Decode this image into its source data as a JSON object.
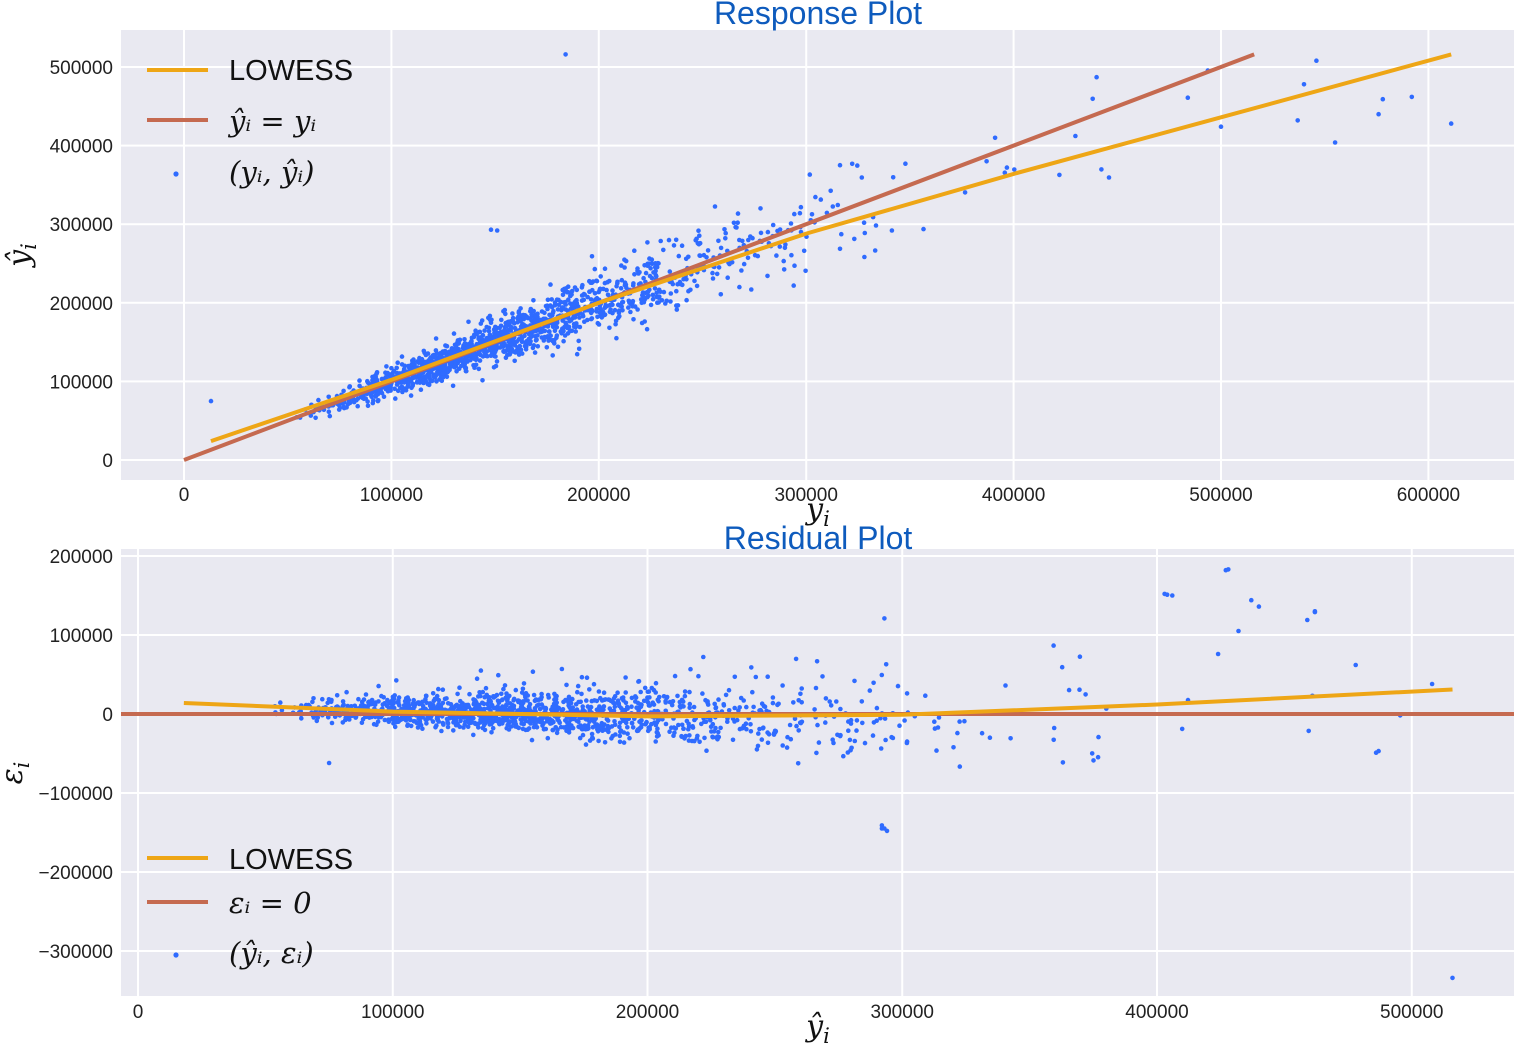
{
  "colors": {
    "points": "#2f6bff",
    "lowess": "#eea616",
    "reference": "#c56a50",
    "title": "#0e5bbd",
    "panel": "#e9e9f1"
  },
  "chart_data": [
    {
      "type": "scatter",
      "title": "Response Plot",
      "xlabel": "y_i",
      "ylabel": "ŷ_i",
      "xlim": [
        -30000,
        640000
      ],
      "ylim": [
        -25000,
        545000
      ],
      "xticks": [
        "0",
        "100000",
        "200000",
        "300000",
        "400000",
        "500000",
        "600000"
      ],
      "yticks": [
        "0",
        "100000",
        "200000",
        "300000",
        "400000",
        "500000"
      ],
      "grid": true,
      "legend_position": "top-left",
      "legend": [
        {
          "kind": "line",
          "label": "LOWESS",
          "color": "#eea616"
        },
        {
          "kind": "line",
          "label": "ŷᵢ = yᵢ",
          "color": "#c56a50"
        },
        {
          "kind": "point",
          "label": "(yᵢ, ŷᵢ)",
          "color": "#2f6bff"
        }
      ],
      "reference_line": {
        "x": [
          0,
          516000
        ],
        "y": [
          0,
          516000
        ]
      },
      "lowess": {
        "x": [
          13000,
          100000,
          200000,
          300000,
          400000,
          500000,
          611000
        ],
        "y": [
          24000,
          102000,
          200000,
          288000,
          364000,
          436000,
          516000
        ]
      },
      "n_points": 1460,
      "point_cloud": {
        "x_range": [
          13000,
          611000
        ],
        "center_x": 150000,
        "spread": 0.12
      }
    },
    {
      "type": "scatter",
      "title": "Residual Plot",
      "xlabel": "ŷ_i",
      "ylabel": "ε_i",
      "xlim": [
        -5000,
        540000
      ],
      "ylim": [
        -345000,
        210000
      ],
      "xticks": [
        "0",
        "100000",
        "200000",
        "300000",
        "400000",
        "500000"
      ],
      "yticks": [
        "200000",
        "100000",
        "0",
        "−100000",
        "−200000",
        "−300000"
      ],
      "grid": true,
      "legend_position": "bottom-left",
      "legend": [
        {
          "kind": "line",
          "label": "LOWESS",
          "color": "#eea616"
        },
        {
          "kind": "line",
          "label": "εᵢ = 0",
          "color": "#c56a50"
        },
        {
          "kind": "point",
          "label": "(ŷᵢ, εᵢ)",
          "color": "#2f6bff"
        }
      ],
      "reference_line": {
        "y": 0
      },
      "lowess": {
        "x": [
          18000,
          100000,
          200000,
          300000,
          400000,
          516000
        ],
        "y": [
          14000,
          3000,
          -3000,
          -1000,
          12000,
          31000
        ]
      },
      "n_points": 1460,
      "outliers": [
        {
          "x": 516000,
          "y": -334000
        },
        {
          "x": 292000,
          "y": -145000
        },
        {
          "x": 294000,
          "y": -148000
        },
        {
          "x": 427000,
          "y": 182000
        },
        {
          "x": 403000,
          "y": 152000
        },
        {
          "x": 406000,
          "y": 150000
        },
        {
          "x": 437000,
          "y": 144000
        },
        {
          "x": 462000,
          "y": 129000
        },
        {
          "x": 293000,
          "y": 121000
        },
        {
          "x": 486000,
          "y": -49000
        }
      ]
    }
  ]
}
